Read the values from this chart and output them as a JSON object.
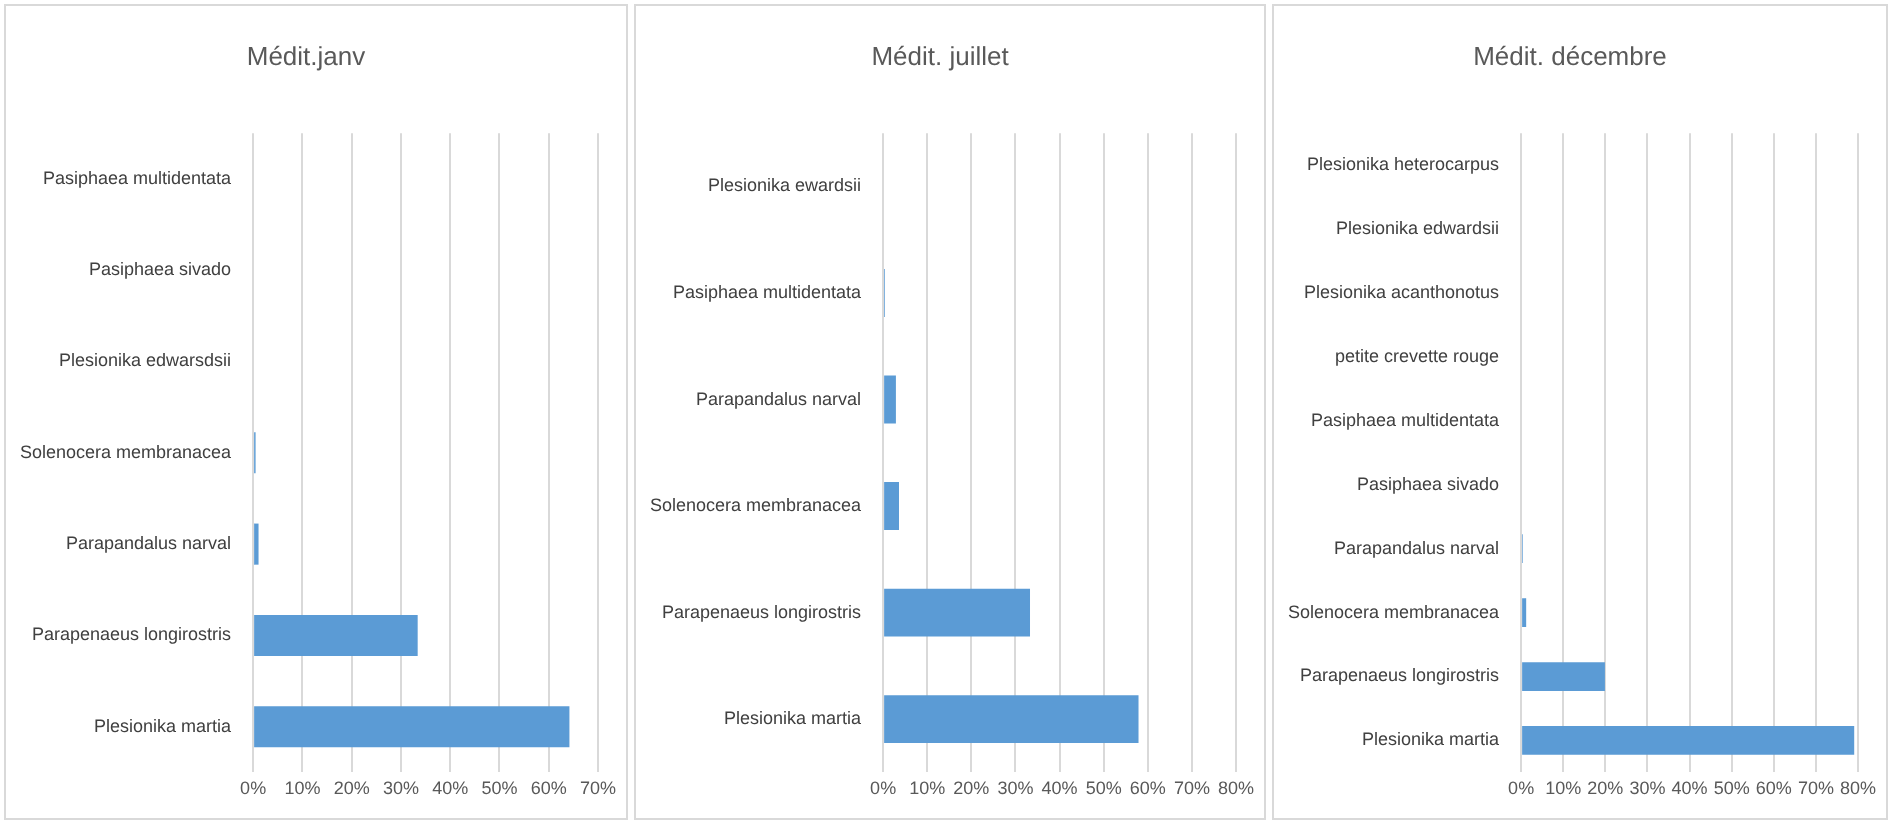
{
  "chart_data": [
    {
      "type": "bar",
      "orientation": "horizontal",
      "title": "Médit.janv",
      "categories": [
        "Pasiphaea multidentata",
        "Pasiphaea sivado",
        "Plesionika edwarsdsii",
        "Solenocera membranacea",
        "Parapandalus narval",
        "Parapenaeus longirostris",
        "Plesionika martia"
      ],
      "values": [
        0,
        0,
        0,
        0.5,
        1.1,
        33.4,
        64.2
      ],
      "color": "#5b9bd5",
      "xlim": [
        0,
        70
      ],
      "xticks": [
        {
          "value": 0,
          "label": "0%"
        },
        {
          "value": 10,
          "label": "10%"
        },
        {
          "value": 20,
          "label": "20%"
        },
        {
          "value": 30,
          "label": "30%"
        },
        {
          "value": 40,
          "label": "40%"
        },
        {
          "value": 50,
          "label": "50%"
        },
        {
          "value": 60,
          "label": "60%"
        },
        {
          "value": 70,
          "label": "70%"
        }
      ],
      "grid": "x",
      "legend": false
    },
    {
      "type": "bar",
      "orientation": "horizontal",
      "title": "Médit. juillet",
      "categories": [
        "Plesionika ewardsii",
        "Pasiphaea multidentata",
        "Parapandalus narval",
        "Solenocera membranacea",
        "Parapenaeus longirostris",
        "Plesionika martia"
      ],
      "values": [
        0,
        0.4,
        2.9,
        3.6,
        33.3,
        57.9
      ],
      "color": "#5b9bd5",
      "xlim": [
        0,
        80
      ],
      "xticks": [
        {
          "value": 0,
          "label": "0%"
        },
        {
          "value": 10,
          "label": "10%"
        },
        {
          "value": 20,
          "label": "20%"
        },
        {
          "value": 30,
          "label": "30%"
        },
        {
          "value": 40,
          "label": "40%"
        },
        {
          "value": 50,
          "label": "50%"
        },
        {
          "value": 60,
          "label": "60%"
        },
        {
          "value": 70,
          "label": "70%"
        },
        {
          "value": 80,
          "label": "80%"
        }
      ],
      "grid": "x",
      "legend": false
    },
    {
      "type": "bar",
      "orientation": "horizontal",
      "title": "Médit. décembre",
      "categories": [
        "Plesionika heterocarpus",
        "Plesionika edwardsii",
        "Plesionika acanthonotus",
        "petite crevette rouge",
        "Pasiphaea multidentata",
        "Pasiphaea sivado",
        "Parapandalus narval",
        "Solenocera membranacea",
        "Parapenaeus longirostris",
        "Plesionika martia"
      ],
      "values": [
        0,
        0,
        0,
        0,
        0,
        0,
        0.4,
        1.2,
        19.9,
        79.1
      ],
      "color": "#5b9bd5",
      "xlim": [
        0,
        80
      ],
      "xticks": [
        {
          "value": 0,
          "label": "0%"
        },
        {
          "value": 10,
          "label": "10%"
        },
        {
          "value": 20,
          "label": "20%"
        },
        {
          "value": 30,
          "label": "30%"
        },
        {
          "value": 40,
          "label": "40%"
        },
        {
          "value": 50,
          "label": "50%"
        },
        {
          "value": 60,
          "label": "60%"
        },
        {
          "value": 70,
          "label": "70%"
        },
        {
          "value": 80,
          "label": "80%"
        }
      ],
      "grid": "x",
      "legend": false
    }
  ]
}
